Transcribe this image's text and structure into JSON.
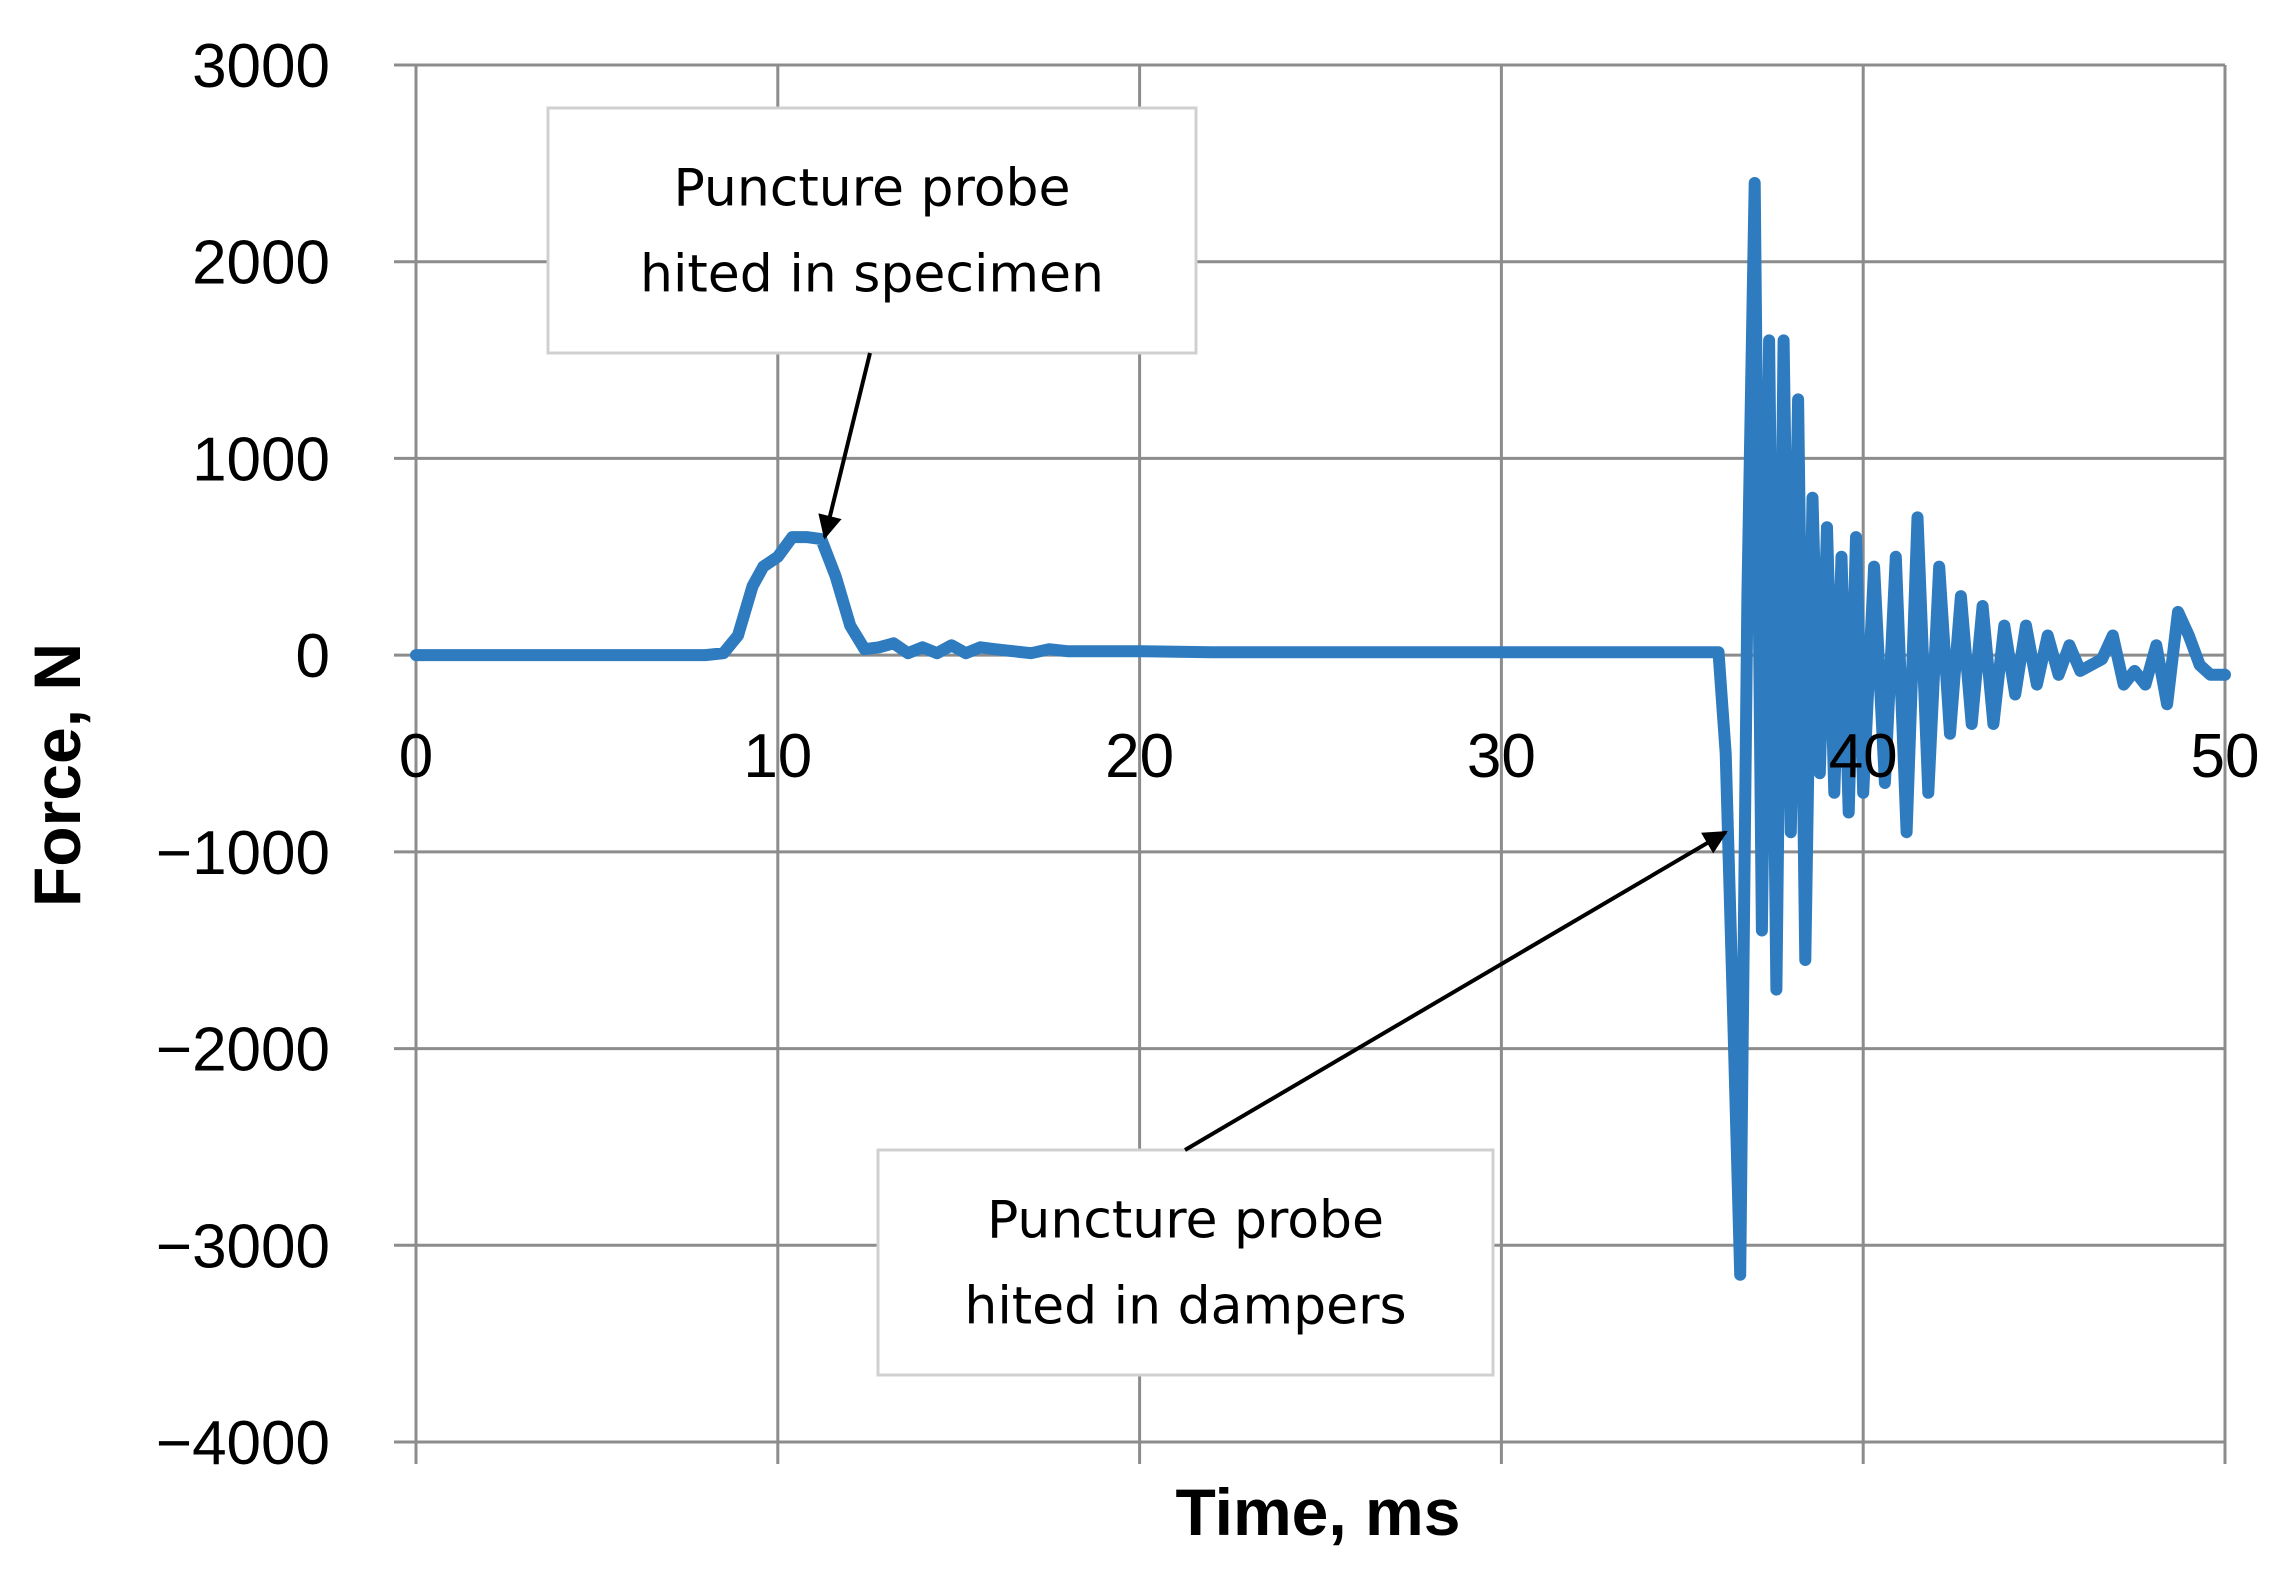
{
  "chart_data": {
    "type": "line",
    "title": "",
    "xlabel": "Time, ms",
    "ylabel": "Force, N",
    "xlim": [
      0,
      50
    ],
    "ylim": [
      -4000,
      3000
    ],
    "xticks": [
      "0",
      "10",
      "20",
      "30",
      "40",
      "50"
    ],
    "yticks": [
      "3000",
      "2000",
      "1000",
      "0",
      "−1000",
      "−2000",
      "−3000",
      "−4000"
    ],
    "grid": true,
    "legend": "none",
    "series": [
      {
        "color": "#2e7bbf",
        "x": [
          0,
          2,
          4,
          6,
          8,
          8.5,
          8.9,
          9.3,
          9.6,
          10.0,
          10.4,
          10.8,
          11.2,
          11.6,
          12.0,
          12.4,
          12.8,
          13.2,
          13.6,
          14.0,
          14.4,
          14.8,
          15.2,
          15.6,
          16.0,
          16.5,
          17.0,
          17.5,
          18.0,
          19.0,
          20.0,
          22.0,
          25.0,
          28.0,
          31.0,
          34.0,
          36.0,
          36.2,
          36.4,
          36.6,
          36.8,
          37.0,
          37.2,
          37.4,
          37.6,
          37.8,
          38.0,
          38.2,
          38.4,
          38.6,
          38.8,
          39.0,
          39.2,
          39.4,
          39.6,
          39.8,
          40.0,
          40.3,
          40.6,
          40.9,
          41.2,
          41.5,
          41.8,
          42.1,
          42.4,
          42.7,
          43.0,
          43.3,
          43.6,
          43.9,
          44.2,
          44.5,
          44.8,
          45.1,
          45.4,
          45.7,
          46.0,
          46.3,
          46.6,
          46.9,
          47.2,
          47.5,
          47.8,
          48.1,
          48.4,
          48.7,
          49.0,
          49.3,
          49.6,
          50.0
        ],
        "values": [
          0,
          0,
          0,
          0,
          0,
          10,
          100,
          350,
          450,
          500,
          600,
          600,
          590,
          400,
          150,
          30,
          40,
          60,
          10,
          40,
          10,
          50,
          10,
          40,
          30,
          20,
          10,
          30,
          20,
          20,
          20,
          15,
          15,
          15,
          15,
          15,
          15,
          -500,
          -1800,
          -3150,
          300,
          2400,
          -1400,
          1600,
          -1700,
          1600,
          -900,
          1300,
          -1550,
          800,
          -600,
          650,
          -700,
          500,
          -800,
          600,
          -700,
          450,
          -650,
          500,
          -900,
          700,
          -700,
          450,
          -400,
          300,
          -350,
          250,
          -350,
          150,
          -200,
          150,
          -150,
          100,
          -100,
          50,
          -80,
          -50,
          -20,
          100,
          -150,
          -80,
          -150,
          50,
          -250,
          220,
          100,
          -50,
          -100,
          -100
        ]
      }
    ],
    "annotations": [
      {
        "lines": [
          "Puncture probe",
          "hited in specimen"
        ],
        "target": [
          11.3,
          600
        ]
      },
      {
        "lines": [
          "Puncture probe",
          "hited in dampers"
        ],
        "target": [
          36.2,
          -900
        ]
      }
    ]
  }
}
